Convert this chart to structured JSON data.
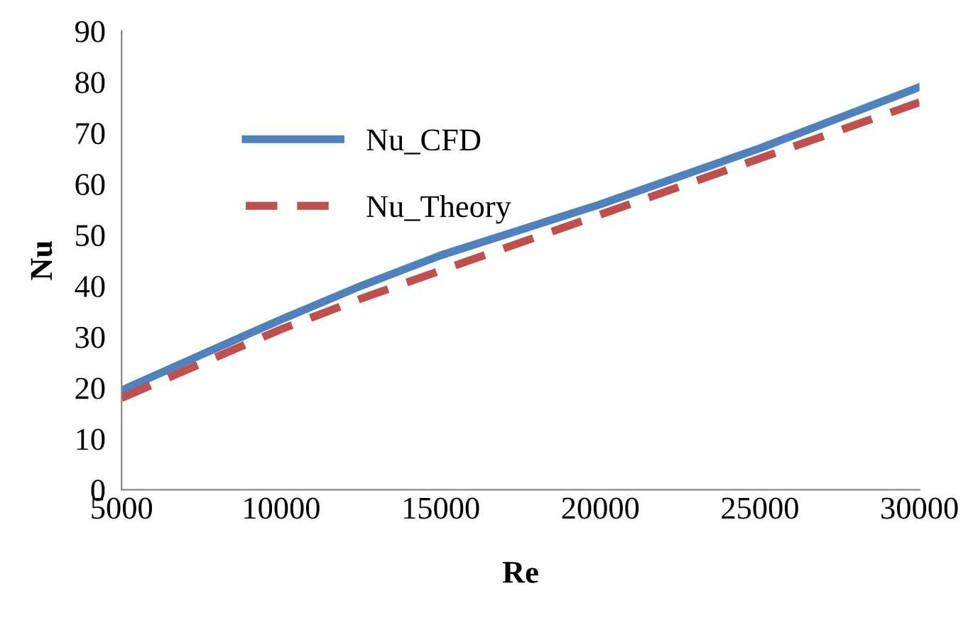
{
  "chart_data": {
    "type": "line",
    "xlabel": "Re",
    "ylabel": "Nu",
    "x": [
      5000,
      7500,
      10000,
      12500,
      15000,
      17500,
      20000,
      22500,
      25000,
      27500,
      30000
    ],
    "series": [
      {
        "name": "Nu_CFD",
        "color": "#4f81bd",
        "line_style": "solid",
        "values": [
          19.5,
          26.5,
          33.4,
          40,
          46,
          51,
          56,
          61.5,
          67,
          73,
          79
        ]
      },
      {
        "name": "Nu_Theory",
        "color": "#c0504d",
        "line_style": "dashed",
        "values": [
          18,
          24.8,
          31.5,
          37.5,
          43,
          48.5,
          54,
          59.5,
          65,
          70.5,
          76
        ]
      }
    ],
    "xlim": [
      5000,
      30000
    ],
    "xticks": [
      5000,
      10000,
      15000,
      20000,
      25000,
      30000
    ],
    "ylim": [
      0,
      90
    ],
    "yticks": [
      0,
      10,
      20,
      30,
      40,
      50,
      60,
      70,
      80,
      90
    ],
    "grid": false,
    "legend": "top left",
    "marker": "none"
  }
}
